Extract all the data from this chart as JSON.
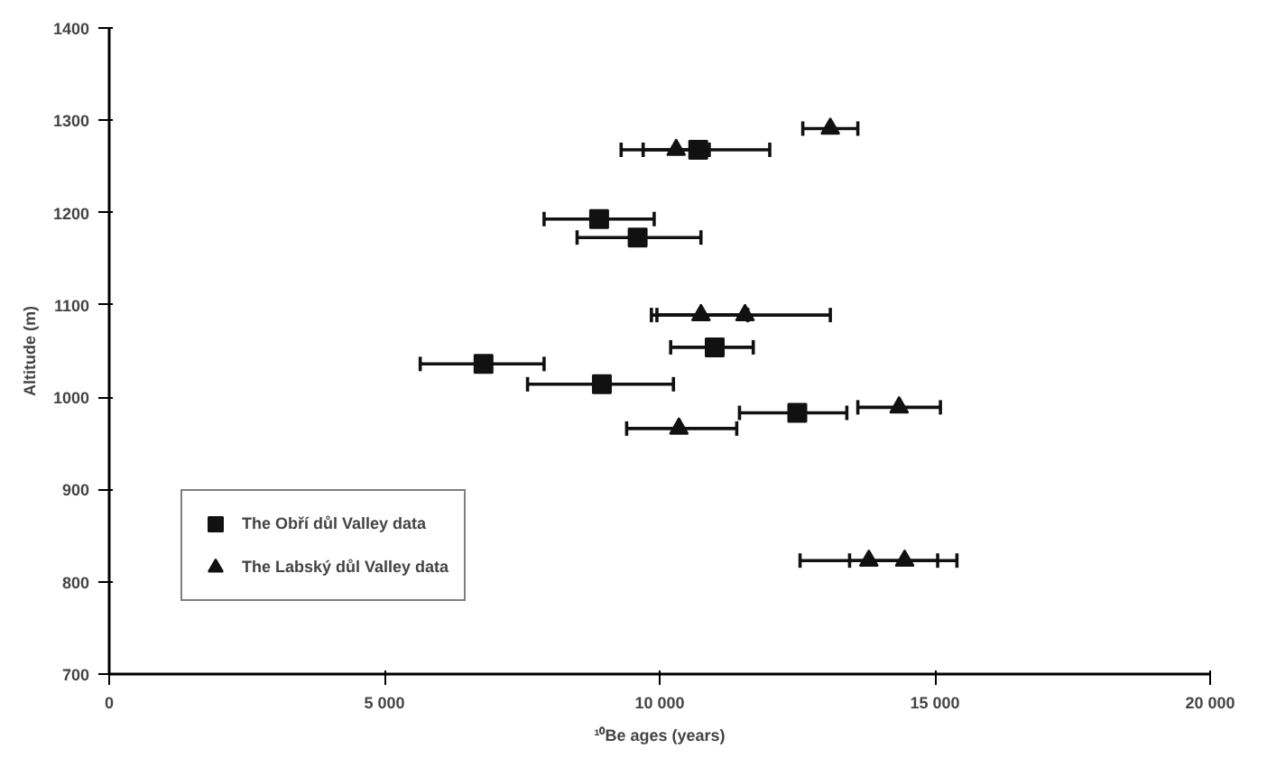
{
  "chart_data": {
    "type": "scatter",
    "xlabel": "¹⁰Be ages (years)",
    "ylabel": "Altitude (m)",
    "xlim": [
      0,
      20000
    ],
    "ylim": [
      700,
      1400
    ],
    "xticks": [
      0,
      {
        "value": 5000,
        "label": "5 000"
      },
      {
        "value": 10000,
        "label": "10 000"
      },
      {
        "value": 15000,
        "label": "15 000"
      },
      {
        "value": 20000,
        "label": "20 000"
      }
    ],
    "yticks": [
      700,
      800,
      900,
      1000,
      1100,
      1200,
      1300,
      1400
    ],
    "grid": false,
    "legend": "bottom left",
    "series": [
      {
        "name": "The Obří důl Valley data",
        "color": "#111111",
        "marker": "square",
        "x": [
          10700,
          8900,
          9600,
          11000,
          6800,
          8950,
          12500
        ],
        "values": [
          1268,
          1193,
          1173,
          1054,
          1036,
          1014,
          983
        ],
        "xerrors": [
          [
            9700,
            12000
          ],
          [
            7900,
            9900
          ],
          [
            8500,
            10750
          ],
          [
            10200,
            11700
          ],
          [
            5650,
            7900
          ],
          [
            7600,
            10250
          ],
          [
            11450,
            13400
          ]
        ]
      },
      {
        "name": "The Labský důl Valley data",
        "color": "#111111",
        "marker": "triangle",
        "x": [
          10300,
          13100,
          10750,
          11550,
          14350,
          10350,
          13800,
          14450
        ],
        "values": [
          1268,
          1291,
          1089,
          1089,
          989,
          966,
          823,
          823
        ],
        "xerrors": [
          [
            9300,
            10900
          ],
          [
            12600,
            13600
          ],
          [
            9850,
            11600
          ],
          [
            9950,
            13100
          ],
          [
            13600,
            15100
          ],
          [
            9400,
            11400
          ],
          [
            12550,
            15050
          ],
          [
            13450,
            15400
          ]
        ]
      }
    ]
  }
}
